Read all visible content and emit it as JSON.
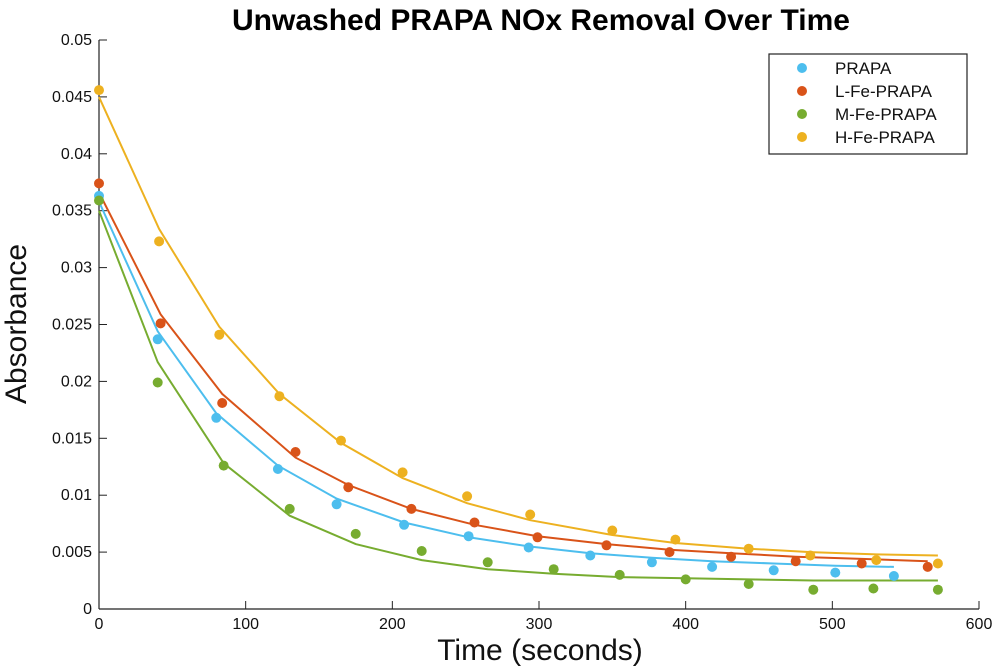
{
  "chart_data": {
    "type": "scatter",
    "title": "Unwashed PRAPA NOx Removal Over Time",
    "xlabel": "Time (seconds)",
    "ylabel": "Absorbance",
    "xlim": [
      0,
      600
    ],
    "ylim": [
      0,
      0.05
    ],
    "xticks": [
      0,
      100,
      200,
      300,
      400,
      500,
      600
    ],
    "yticks": [
      0,
      0.005,
      0.01,
      0.015,
      0.02,
      0.025,
      0.03,
      0.035,
      0.04,
      0.045,
      0.05
    ],
    "xtick_labels": [
      "0",
      "100",
      "200",
      "300",
      "400",
      "500",
      "600"
    ],
    "ytick_labels": [
      "0",
      "0.005",
      "0.01",
      "0.015",
      "0.02",
      "0.025",
      "0.03",
      "0.035",
      "0.04",
      "0.045",
      "0.05"
    ],
    "grid": false,
    "legend": "top-right",
    "series": [
      {
        "name": "PRAPA",
        "color": "#4DBEEE",
        "points": [
          [
            0,
            0.0363
          ],
          [
            40,
            0.0237
          ],
          [
            80,
            0.0168
          ],
          [
            122,
            0.0123
          ],
          [
            162,
            0.0092
          ],
          [
            208,
            0.0074
          ],
          [
            252,
            0.0064
          ],
          [
            293,
            0.0054
          ],
          [
            335,
            0.0047
          ],
          [
            377,
            0.0041
          ],
          [
            418,
            0.0037
          ],
          [
            460,
            0.0034
          ],
          [
            502,
            0.0032
          ],
          [
            542,
            0.0029
          ]
        ],
        "fit": [
          [
            0,
            0.0358
          ],
          [
            40,
            0.0244
          ],
          [
            80,
            0.0172
          ],
          [
            122,
            0.0126
          ],
          [
            162,
            0.0097
          ],
          [
            208,
            0.0076
          ],
          [
            252,
            0.0063
          ],
          [
            293,
            0.0055
          ],
          [
            335,
            0.0049
          ],
          [
            377,
            0.0045
          ],
          [
            418,
            0.0042
          ],
          [
            460,
            0.004
          ],
          [
            502,
            0.0038
          ],
          [
            542,
            0.0037
          ]
        ]
      },
      {
        "name": "L-Fe-PRAPA",
        "color": "#D95319",
        "points": [
          [
            0,
            0.0374
          ],
          [
            42,
            0.0251
          ],
          [
            84,
            0.0181
          ],
          [
            134,
            0.0138
          ],
          [
            170,
            0.0107
          ],
          [
            213,
            0.0088
          ],
          [
            256,
            0.0076
          ],
          [
            299,
            0.0063
          ],
          [
            346,
            0.0056
          ],
          [
            389,
            0.005
          ],
          [
            431,
            0.0046
          ],
          [
            475,
            0.0042
          ],
          [
            520,
            0.004
          ],
          [
            565,
            0.0037
          ]
        ],
        "fit": [
          [
            0,
            0.0366
          ],
          [
            42,
            0.0259
          ],
          [
            84,
            0.0189
          ],
          [
            134,
            0.0133
          ],
          [
            170,
            0.0109
          ],
          [
            213,
            0.0088
          ],
          [
            256,
            0.0074
          ],
          [
            299,
            0.0064
          ],
          [
            346,
            0.0057
          ],
          [
            389,
            0.0052
          ],
          [
            431,
            0.0049
          ],
          [
            475,
            0.0046
          ],
          [
            520,
            0.0044
          ],
          [
            565,
            0.0042
          ]
        ]
      },
      {
        "name": "M-Fe-PRAPA",
        "color": "#77AC30",
        "points": [
          [
            0,
            0.0359
          ],
          [
            40,
            0.0199
          ],
          [
            85,
            0.0126
          ],
          [
            130,
            0.0088
          ],
          [
            175,
            0.0066
          ],
          [
            220,
            0.0051
          ],
          [
            265,
            0.0041
          ],
          [
            310,
            0.0035
          ],
          [
            355,
            0.003
          ],
          [
            400,
            0.0026
          ],
          [
            443,
            0.0022
          ],
          [
            487,
            0.0017
          ],
          [
            528,
            0.0018
          ],
          [
            572,
            0.0017
          ]
        ],
        "fit": [
          [
            0,
            0.035
          ],
          [
            40,
            0.0217
          ],
          [
            85,
            0.0128
          ],
          [
            130,
            0.0082
          ],
          [
            175,
            0.0057
          ],
          [
            220,
            0.0043
          ],
          [
            265,
            0.0035
          ],
          [
            310,
            0.0031
          ],
          [
            355,
            0.0028
          ],
          [
            400,
            0.0027
          ],
          [
            443,
            0.0026
          ],
          [
            487,
            0.0025
          ],
          [
            528,
            0.0025
          ],
          [
            572,
            0.0025
          ]
        ]
      },
      {
        "name": "H-Fe-PRAPA",
        "color": "#EDB120",
        "points": [
          [
            0,
            0.0456
          ],
          [
            41,
            0.0323
          ],
          [
            82,
            0.0241
          ],
          [
            123,
            0.0187
          ],
          [
            165,
            0.0148
          ],
          [
            207,
            0.012
          ],
          [
            251,
            0.0099
          ],
          [
            294,
            0.0083
          ],
          [
            350,
            0.0069
          ],
          [
            393,
            0.0061
          ],
          [
            443,
            0.0053
          ],
          [
            485,
            0.0047
          ],
          [
            530,
            0.0043
          ],
          [
            572,
            0.004
          ]
        ],
        "fit": [
          [
            0,
            0.045
          ],
          [
            41,
            0.0334
          ],
          [
            82,
            0.0248
          ],
          [
            123,
            0.0189
          ],
          [
            165,
            0.0146
          ],
          [
            207,
            0.0115
          ],
          [
            251,
            0.0093
          ],
          [
            294,
            0.0078
          ],
          [
            350,
            0.0065
          ],
          [
            393,
            0.0058
          ],
          [
            443,
            0.0053
          ],
          [
            485,
            0.005
          ],
          [
            530,
            0.0048
          ],
          [
            572,
            0.0047
          ]
        ]
      }
    ]
  }
}
